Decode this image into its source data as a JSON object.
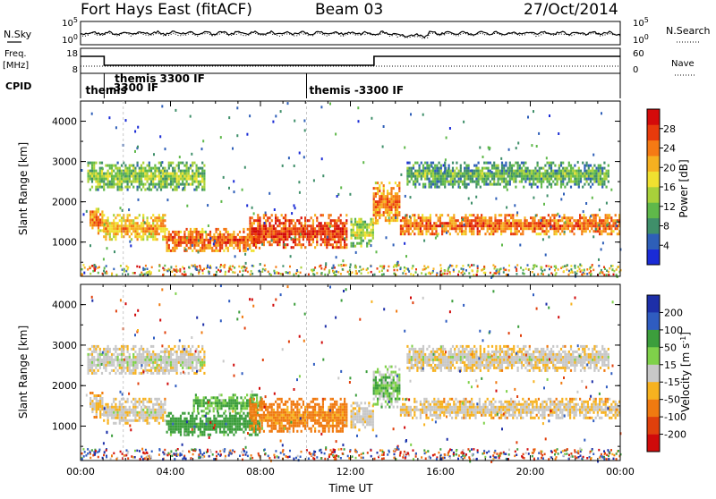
{
  "header": {
    "title": "Fort Hays East (fitACF)",
    "beam": "Beam 03",
    "date": "27/Oct/2014"
  },
  "summary_panels": {
    "nsky_label": "N.Sky",
    "nsearch_label": "N.Search",
    "freq_label_top": "Freq.",
    "freq_label_units": "[MHz]",
    "nave_label": "Nave",
    "cpid_label": "CPID",
    "noise_left_ticks": [
      "10^5",
      "10^0"
    ],
    "noise_right_ticks": [
      "10^5",
      "10^0"
    ],
    "freq_left_ticks": [
      "18",
      "8"
    ],
    "freq_right_ticks": [
      "60",
      "0"
    ]
  },
  "cpid_labels": [
    {
      "text": "themis",
      "hour": 0.1,
      "row": 2
    },
    {
      "text": "themis 3300 IF",
      "hour": 1.4,
      "row": 0
    },
    {
      "text": "-3300 IF",
      "hour": 1.15,
      "row": 1
    },
    {
      "text": "themis -3300 IF",
      "hour": 10.05,
      "row": 2
    }
  ],
  "chart_data": [
    {
      "type": "heatmap",
      "panel": "power",
      "xlabel": "",
      "ylabel": "Slant Range [km]",
      "xlim": [
        0,
        24
      ],
      "ylim": [
        150,
        4500
      ],
      "yticks": [
        "1000",
        "2000",
        "3000",
        "4000"
      ],
      "colorbar": {
        "label": "Power [dB]",
        "ticks": [
          "4",
          "8",
          "12",
          "16",
          "20",
          "24",
          "28"
        ],
        "colors": [
          "#1a2bd6",
          "#2e5fb8",
          "#3f8f6a",
          "#5fb84a",
          "#a8d13a",
          "#f0e130",
          "#f6b020",
          "#f57a14",
          "#e83a0c",
          "#d40a0a"
        ],
        "range": [
          0,
          32
        ]
      },
      "echo_bands": [
        {
          "start_hour": 0.4,
          "end_hour": 1.0,
          "range_km": [
            1250,
            1850
          ],
          "power_db": 24
        },
        {
          "start_hour": 1.0,
          "end_hour": 3.8,
          "range_km": [
            1050,
            1700
          ],
          "power_db": 22
        },
        {
          "start_hour": 3.8,
          "end_hour": 8.0,
          "range_km": [
            800,
            1350
          ],
          "power_db": 26
        },
        {
          "start_hour": 7.5,
          "end_hour": 11.8,
          "range_km": [
            850,
            1700
          ],
          "power_db": 28
        },
        {
          "start_hour": 12.0,
          "end_hour": 13.0,
          "range_km": [
            900,
            1600
          ],
          "power_db": 16
        },
        {
          "start_hour": 13.0,
          "end_hour": 14.2,
          "range_km": [
            1500,
            2500
          ],
          "power_db": 24
        },
        {
          "start_hour": 14.2,
          "end_hour": 24.0,
          "range_km": [
            1200,
            1700
          ],
          "power_db": 26
        },
        {
          "start_hour": 0.3,
          "end_hour": 5.5,
          "range_km": [
            2300,
            3000
          ],
          "power_db": 14
        },
        {
          "start_hour": 14.5,
          "end_hour": 23.5,
          "range_km": [
            2400,
            3000
          ],
          "power_db": 12
        }
      ]
    },
    {
      "type": "heatmap",
      "panel": "velocity",
      "xlabel": "Time UT",
      "ylabel": "Slant Range [km]",
      "xlim": [
        0,
        24
      ],
      "ylim": [
        150,
        4500
      ],
      "xticks": [
        "00:00",
        "04:00",
        "08:00",
        "12:00",
        "16:00",
        "20:00",
        "00:00"
      ],
      "yticks": [
        "1000",
        "2000",
        "3000",
        "4000"
      ],
      "colorbar": {
        "label": "Velocity [m s^-1]",
        "ticks": [
          "200",
          "100",
          "50",
          "15",
          "-15",
          "-50",
          "-100",
          "-200"
        ],
        "colors": [
          "#1d2fa8",
          "#2f5cc0",
          "#3c9e3c",
          "#7fd14a",
          "#c8c8c8",
          "#f7b21f",
          "#f07a10",
          "#e0400c",
          "#d00a0a"
        ]
      },
      "echo_bands": [
        {
          "start_hour": 0.4,
          "end_hour": 1.0,
          "range_km": [
            1250,
            1850
          ],
          "velocity_ms": -10
        },
        {
          "start_hour": 1.0,
          "end_hour": 3.8,
          "range_km": [
            1050,
            1700
          ],
          "velocity_ms": 0
        },
        {
          "start_hour": 3.8,
          "end_hour": 8.0,
          "range_km": [
            800,
            1350
          ],
          "velocity_ms": 60
        },
        {
          "start_hour": 5.0,
          "end_hour": 8.0,
          "range_km": [
            1400,
            1800
          ],
          "velocity_ms": 40
        },
        {
          "start_hour": 7.5,
          "end_hour": 11.8,
          "range_km": [
            850,
            1700
          ],
          "velocity_ms": -40
        },
        {
          "start_hour": 12.0,
          "end_hour": 13.0,
          "range_km": [
            900,
            1600
          ],
          "velocity_ms": 0
        },
        {
          "start_hour": 13.0,
          "end_hour": 14.2,
          "range_km": [
            1500,
            2500
          ],
          "velocity_ms": 30
        },
        {
          "start_hour": 14.2,
          "end_hour": 24.0,
          "range_km": [
            1200,
            1700
          ],
          "velocity_ms": -5
        },
        {
          "start_hour": 0.3,
          "end_hour": 5.5,
          "range_km": [
            2300,
            3000
          ],
          "velocity_ms": 5
        },
        {
          "start_hour": 14.5,
          "end_hour": 23.5,
          "range_km": [
            2400,
            3000
          ],
          "velocity_ms": 0
        }
      ]
    }
  ]
}
